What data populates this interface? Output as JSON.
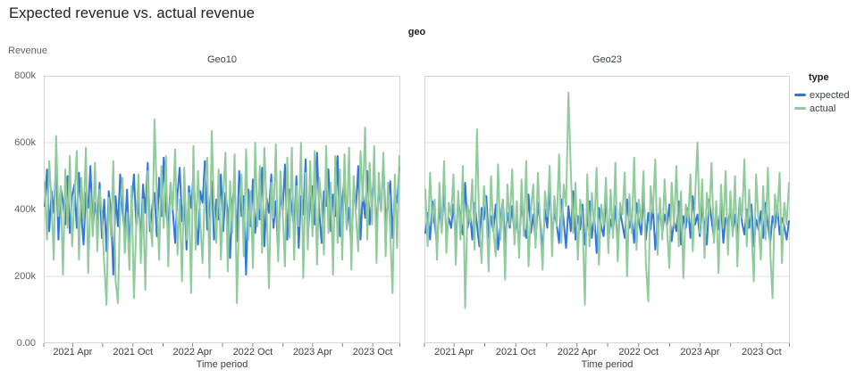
{
  "page": {
    "title": "Expected revenue vs. actual revenue"
  },
  "facet_header": {
    "label": "geo"
  },
  "y_axis": {
    "title": "Revenue",
    "units": "revenue (k = thousands)",
    "min_k": 0,
    "max_k": 800,
    "ticks": [
      {
        "v": 800,
        "label": "800k"
      },
      {
        "v": 600,
        "label": "600k"
      },
      {
        "v": 400,
        "label": "400k"
      },
      {
        "v": 200,
        "label": "200k"
      },
      {
        "v": 0,
        "label": "0.00"
      }
    ]
  },
  "x_axis": {
    "title": "Time period",
    "range": "Jan 2021 - Dec 2023, weekly",
    "ticks": [
      {
        "f": 0.0,
        "label": ""
      },
      {
        "f": 0.0811,
        "label": "2021 Apr"
      },
      {
        "f": 0.165,
        "label": ""
      },
      {
        "f": 0.25,
        "label": "2021 Oct"
      },
      {
        "f": 0.3346,
        "label": ""
      },
      {
        "f": 0.4175,
        "label": "2022 Apr"
      },
      {
        "f": 0.5014,
        "label": ""
      },
      {
        "f": 0.5862,
        "label": "2022 Oct"
      },
      {
        "f": 0.671,
        "label": ""
      },
      {
        "f": 0.754,
        "label": "2023 Apr"
      },
      {
        "f": 0.8378,
        "label": ""
      },
      {
        "f": 0.9226,
        "label": "2023 Oct"
      },
      {
        "f": 1.0,
        "label": ""
      }
    ]
  },
  "legend": {
    "title": "type",
    "items": [
      {
        "label": "expected",
        "color": "#3377DE"
      },
      {
        "label": "actual",
        "color": "#90CB9B"
      }
    ]
  },
  "style": {
    "gridline_color": "#e0e0e0",
    "border_color": "#d5d5d5",
    "tick_color": "#80868b"
  },
  "chart_data": [
    {
      "facet": "Geo10",
      "type": "line",
      "x_start": "2021-01-03",
      "x_step_days": 7,
      "ylim_k": [
        0,
        800
      ],
      "series": [
        {
          "name": "expected",
          "values_k": [
            410,
            520,
            335,
            455,
            390,
            540,
            310,
            465,
            425,
            355,
            500,
            330,
            440,
            475,
            345,
            510,
            385,
            295,
            450,
            405,
            530,
            340,
            420,
            365,
            480,
            315,
            430,
            275,
            455,
            390,
            205,
            440,
            350,
            505,
            395,
            330,
            460,
            285,
            415,
            505,
            350,
            425,
            300,
            475,
            390,
            540,
            335,
            410,
            450,
            320,
            495,
            380,
            555,
            400,
            340,
            480,
            395,
            300,
            445,
            525,
            365,
            435,
            280,
            470,
            405,
            510,
            375,
            295,
            455,
            420,
            545,
            340,
            400,
            485,
            310,
            430,
            370,
            505,
            335,
            450,
            395,
            255,
            420,
            475,
            305,
            515,
            380,
            440,
            205,
            460,
            350,
            490,
            330,
            415,
            370,
            525,
            290,
            435,
            390,
            505,
            345,
            425,
            265,
            450,
            395,
            535,
            310,
            460,
            405,
            340,
            500,
            285,
            440,
            385,
            550,
            325,
            415,
            470,
            355,
            570,
            390,
            300,
            455,
            410,
            520,
            335,
            445,
            380,
            560,
            320,
            430,
            495,
            345,
            405,
            275,
            465,
            400,
            530,
            310,
            450,
            375,
            515,
            355,
            440,
            505,
            330,
            470,
            395,
            545,
            360,
            425,
            485,
            315,
            455,
            420,
            525
          ]
        },
        {
          "name": "actual",
          "values_k": [
            480,
            310,
            545,
            420,
            250,
            620,
            380,
            470,
            205,
            520,
            345,
            560,
            290,
            430,
            575,
            250,
            495,
            365,
            585,
            210,
            450,
            320,
            540,
            275,
            460,
            390,
            240,
            115,
            435,
            320,
            545,
            185,
            120,
            410,
            495,
            270,
            390,
            220,
            470,
            135,
            355,
            505,
            240,
            430,
            160,
            515,
            375,
            290,
            670,
            440,
            250,
            530,
            345,
            560,
            230,
            480,
            400,
            580,
            265,
            430,
            185,
            525,
            310,
            450,
            150,
            590,
            280,
            515,
            360,
            240,
            475,
            555,
            195,
            635,
            405,
            300,
            520,
            250,
            440,
            570,
            215,
            485,
            330,
            565,
            120,
            395,
            505,
            260,
            580,
            310,
            455,
            225,
            600,
            350,
            530,
            270,
            585,
            405,
            165,
            480,
            375,
            595,
            245,
            515,
            390,
            230,
            555,
            315,
            585,
            250,
            470,
            350,
            600,
            195,
            510,
            280,
            545,
            320,
            575,
            235,
            495,
            415,
            265,
            590,
            330,
            480,
            205,
            560,
            300,
            520,
            250,
            565,
            340,
            585,
            220,
            500,
            385,
            275,
            575,
            425,
            645,
            310,
            540,
            355,
            590,
            240,
            510,
            395,
            570,
            260,
            480,
            330,
            150,
            505,
            285,
            560
          ]
        }
      ]
    },
    {
      "facet": "Geo23",
      "type": "line",
      "x_start": "2021-01-03",
      "x_step_days": 7,
      "ylim_k": [
        0,
        800
      ],
      "series": [
        {
          "name": "expected",
          "values_k": [
            330,
            390,
            310,
            425,
            355,
            295,
            410,
            340,
            460,
            320,
            375,
            345,
            415,
            300,
            435,
            365,
            325,
            480,
            345,
            395,
            310,
            420,
            355,
            290,
            405,
            370,
            440,
            315,
            380,
            335,
            415,
            280,
            360,
            430,
            300,
            390,
            345,
            410,
            325,
            370,
            295,
            425,
            350,
            315,
            445,
            330,
            385,
            305,
            420,
            360,
            275,
            400,
            345,
            470,
            320,
            390,
            355,
            300,
            430,
            365,
            285,
            410,
            335,
            455,
            310,
            380,
            340,
            415,
            295,
            360,
            425,
            315,
            385,
            270,
            405,
            350,
            320,
            440,
            305,
            370,
            335,
            410,
            290,
            395,
            355,
            315,
            430,
            345,
            380,
            300,
            420,
            365,
            325,
            445,
            310,
            390,
            340,
            415,
            280,
            370,
            400,
            330,
            385,
            350,
            415,
            305,
            365,
            335,
            425,
            295,
            380,
            345,
            405,
            315,
            440,
            355,
            385,
            320,
            410,
            350,
            295,
            430,
            370,
            315,
            395,
            340,
            420,
            300,
            375,
            355,
            405,
            330,
            385,
            310,
            435,
            360,
            325,
            400,
            345,
            415,
            290,
            370,
            340,
            395,
            315,
            420,
            355,
            300,
            380,
            345,
            410,
            325,
            375,
            350,
            310,
            365
          ]
        },
        {
          "name": "actual",
          "values_k": [
            460,
            290,
            510,
            360,
            430,
            250,
            480,
            330,
            545,
            270,
            420,
            380,
            505,
            235,
            455,
            310,
            530,
            105,
            415,
            360,
            490,
            280,
            640,
            350,
            240,
            470,
            390,
            215,
            500,
            345,
            260,
            535,
            310,
            430,
            190,
            475,
            355,
            520,
            295,
            425,
            255,
            490,
            320,
            545,
            230,
            400,
            475,
            285,
            510,
            340,
            220,
            455,
            380,
            530,
            260,
            440,
            350,
            565,
            300,
            475,
            410,
            750,
            520,
            330,
            480,
            250,
            430,
            370,
            115,
            505,
            290,
            450,
            340,
            525,
            235,
            415,
            355,
            495,
            270,
            460,
            315,
            540,
            245,
            420,
            385,
            510,
            200,
            445,
            330,
            555,
            280,
            430,
            360,
            515,
            240,
            125,
            470,
            390,
            550,
            265,
            435,
            310,
            490,
            345,
            225,
            480,
            350,
            530,
            290,
            455,
            195,
            415,
            365,
            505,
            275,
            440,
            600,
            330,
            490,
            255,
            450,
            380,
            540,
            300,
            425,
            210,
            475,
            345,
            515,
            265,
            455,
            320,
            500,
            230,
            435,
            375,
            550,
            290,
            460,
            340,
            185,
            505,
            360,
            250,
            470,
            310,
            525,
            275,
            135,
            445,
            380,
            510,
            240,
            420,
            355,
            480
          ]
        }
      ]
    }
  ]
}
